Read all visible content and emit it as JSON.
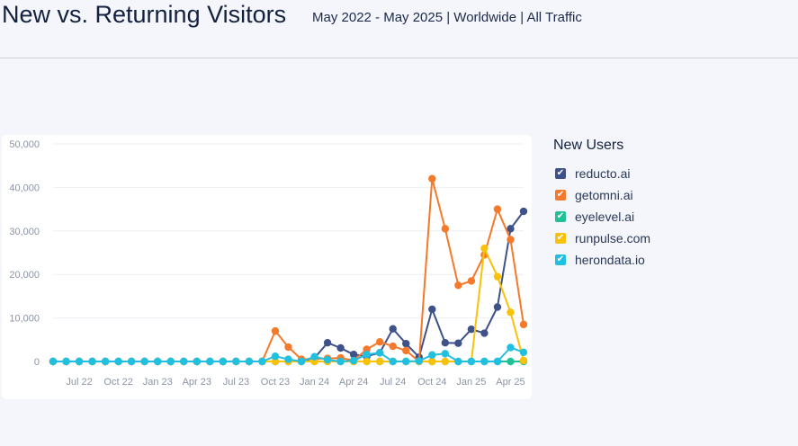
{
  "header": {
    "title": "New vs. Returning Visitors",
    "subtitle": "May 2022 - May 2025 | Worldwide | All Traffic"
  },
  "legend": {
    "title": "New Users",
    "check_icon": "checkmark-icon"
  },
  "chart_data": {
    "type": "line",
    "x": [
      "May 22",
      "Jun 22",
      "Jul 22",
      "Aug 22",
      "Sep 22",
      "Oct 22",
      "Nov 22",
      "Dec 22",
      "Jan 23",
      "Feb 23",
      "Mar 23",
      "Apr 23",
      "May 23",
      "Jun 23",
      "Jul 23",
      "Aug 23",
      "Sep 23",
      "Oct 23",
      "Nov 23",
      "Dec 23",
      "Jan 24",
      "Feb 24",
      "Mar 24",
      "Apr 24",
      "May 24",
      "Jun 24",
      "Jul 24",
      "Aug 24",
      "Sep 24",
      "Oct 24",
      "Nov 24",
      "Dec 24",
      "Jan 25",
      "Feb 25",
      "Mar 25",
      "Apr 25",
      "May 25"
    ],
    "x_tick_labels": [
      "Jul 22",
      "Oct 22",
      "Jan 23",
      "Apr 23",
      "Jul 23",
      "Oct 23",
      "Jan 24",
      "Apr 24",
      "Jul 24",
      "Oct 24",
      "Jan 25",
      "Apr 25"
    ],
    "x_tick_indices": [
      2,
      5,
      8,
      11,
      14,
      17,
      20,
      23,
      26,
      29,
      32,
      35
    ],
    "y_tick_labels": [
      "0",
      "10,000",
      "20,000",
      "30,000",
      "40,000",
      "50,000"
    ],
    "ylim": [
      0,
      50000
    ],
    "grid": true,
    "legend_position": "right",
    "series": [
      {
        "name": "reducto.ai",
        "color": "#3f5189",
        "values": [
          0,
          0,
          0,
          0,
          0,
          0,
          0,
          0,
          0,
          0,
          0,
          0,
          0,
          0,
          0,
          0,
          0,
          0,
          0,
          0,
          800,
          4300,
          3100,
          1600,
          1200,
          2000,
          7500,
          4100,
          1000,
          12000,
          4300,
          4200,
          7400,
          6500,
          12500,
          30500,
          34500
        ]
      },
      {
        "name": "getomni.ai",
        "color": "#f5792a",
        "values": [
          0,
          0,
          0,
          0,
          0,
          0,
          0,
          0,
          0,
          0,
          0,
          0,
          0,
          0,
          0,
          0,
          0,
          7000,
          3300,
          500,
          600,
          700,
          800,
          200,
          2800,
          4500,
          3500,
          2500,
          0,
          42000,
          30500,
          17500,
          18500,
          24500,
          35000,
          28000,
          8500
        ]
      },
      {
        "name": "eyelevel.ai",
        "color": "#20c098",
        "values": [
          0,
          0,
          0,
          0,
          0,
          0,
          0,
          0,
          0,
          0,
          0,
          0,
          0,
          0,
          0,
          0,
          0,
          0,
          0,
          0,
          0,
          0,
          0,
          0,
          0,
          0,
          0,
          0,
          0,
          0,
          0,
          0,
          0,
          0,
          0,
          0,
          0
        ]
      },
      {
        "name": "runpulse.com",
        "color": "#f8c20a",
        "values": [
          0,
          0,
          0,
          0,
          0,
          0,
          0,
          0,
          0,
          0,
          0,
          0,
          0,
          0,
          0,
          0,
          0,
          0,
          0,
          0,
          0,
          0,
          0,
          0,
          0,
          0,
          0,
          0,
          0,
          0,
          0,
          0,
          0,
          26000,
          19500,
          11300,
          200
        ]
      },
      {
        "name": "herondata.io",
        "color": "#21bfe0",
        "values": [
          0,
          0,
          0,
          0,
          0,
          0,
          0,
          0,
          0,
          0,
          0,
          0,
          0,
          0,
          0,
          0,
          0,
          1200,
          500,
          0,
          1100,
          400,
          0,
          200,
          1600,
          2000,
          0,
          0,
          100,
          1500,
          1800,
          0,
          0,
          0,
          0,
          3200,
          2100
        ]
      }
    ]
  }
}
